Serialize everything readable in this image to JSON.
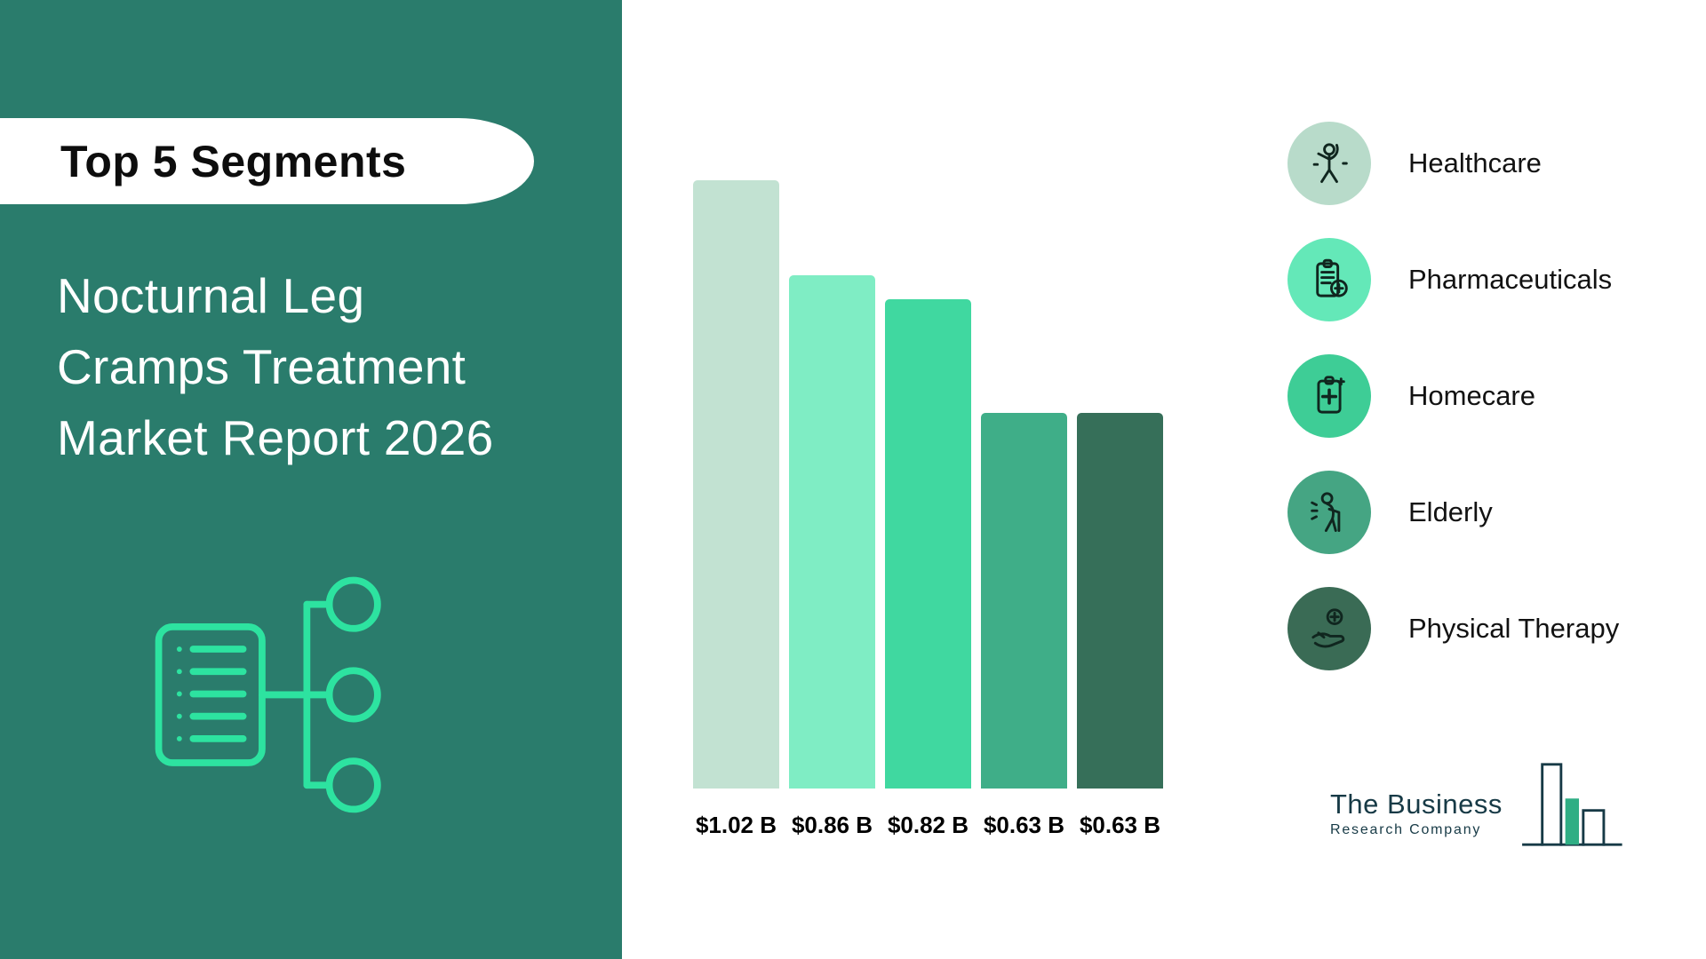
{
  "left_panel": {
    "badge": "Top 5 Segments",
    "title_lines": [
      "Nocturnal Leg",
      "Cramps Treatment",
      "Market Report 2026"
    ],
    "panel_color": "#2a7c6c",
    "accent_color": "#2de3a0"
  },
  "chart_data": {
    "type": "bar",
    "title": "Top 5 Segments - Nocturnal Leg Cramps Treatment Market 2026",
    "categories": [
      "Healthcare",
      "Pharmaceuticals",
      "Homecare",
      "Elderly",
      "Physical Therapy"
    ],
    "values": [
      1.02,
      0.86,
      0.82,
      0.63,
      0.63
    ],
    "labels": [
      "$1.02 B",
      "$0.86 B",
      "$0.82 B",
      "$0.63 B",
      "$0.63 B"
    ],
    "bar_colors": [
      "#c2e2d2",
      "#7fedc4",
      "#40d8a0",
      "#3fae88",
      "#366f59"
    ],
    "xlabel": "",
    "ylabel": "",
    "ylim": [
      0,
      1.05
    ],
    "grid": false,
    "value_unit": "billion USD",
    "legend_position": "right"
  },
  "legend": {
    "items": [
      {
        "label": "Healthcare",
        "color": "#b8dbca",
        "icon": "person-stretching-icon"
      },
      {
        "label": "Pharmaceuticals",
        "color": "#64e8b8",
        "icon": "clipboard-medical-icon"
      },
      {
        "label": "Homecare",
        "color": "#3ecd96",
        "icon": "clipboard-cross-icon"
      },
      {
        "label": "Elderly",
        "color": "#45a583",
        "icon": "elderly-person-icon"
      },
      {
        "label": "Physical Therapy",
        "color": "#3a6b55",
        "icon": "hand-cross-icon"
      }
    ]
  },
  "logo": {
    "line1": "The Business",
    "line2": "Research Company",
    "color": "#173a46",
    "accent": "#2fae84"
  }
}
